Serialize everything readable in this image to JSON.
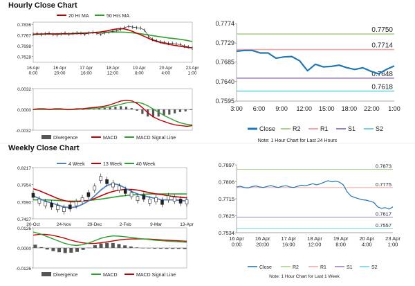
{
  "hourly_title": "Hourly Close Chart",
  "weekly_title": "Weekly Close Chart",
  "colors": {
    "close": "#1f77b4",
    "ma1": "#c00000",
    "ma2": "#2ca02c",
    "hist": "#555555",
    "macd": "#c00000",
    "signal": "#2ca02c",
    "r2": "#a9d18e",
    "r1": "#f4a6a6",
    "s1": "#9b7fc1",
    "s2": "#6fd3d8",
    "wk4": "#4f81bd"
  },
  "chart_data": [
    {
      "id": "hourly-price",
      "type": "line",
      "title": "Hourly Close Chart",
      "legend": [
        "20 Hr MA",
        "50 Hrs MA"
      ],
      "yticks": [
        "0.7836",
        "0.7767",
        "0.7698",
        "0.7628"
      ],
      "ylim": [
        0.759,
        0.785
      ],
      "xticks": [
        "16 Apr\n0:00",
        "16 Apr\n20:00",
        "17 Apr\n16:00",
        "18 Apr\n12:00",
        "19 Apr\n8:00",
        "20 Apr\n4:00",
        "23 Apr\n1:00"
      ],
      "series": [
        {
          "name": "Close",
          "values": [
            0.7772,
            0.7776,
            0.777,
            0.7775,
            0.7778,
            0.777,
            0.7768,
            0.7774,
            0.7779,
            0.7772,
            0.7776,
            0.778,
            0.7777,
            0.7772,
            0.7779,
            0.7784,
            0.7778,
            0.7772,
            0.7781,
            0.7786,
            0.7791,
            0.7793,
            0.7805,
            0.7815,
            0.7822,
            0.7818,
            0.7814,
            0.7812,
            0.7798,
            0.776,
            0.7738,
            0.773,
            0.7722,
            0.7719,
            0.7712,
            0.7714,
            0.7708,
            0.7705,
            0.7695,
            0.769,
            0.7682
          ]
        },
        {
          "name": "20 Hr MA",
          "values": [
            0.7772,
            0.7773,
            0.7774,
            0.7774,
            0.7774,
            0.7774,
            0.7774,
            0.7774,
            0.7774,
            0.7774,
            0.7775,
            0.7776,
            0.7777,
            0.7778,
            0.778,
            0.7782,
            0.7784,
            0.7787,
            0.7791,
            0.7796,
            0.7802,
            0.7806,
            0.7808,
            0.7806,
            0.7799,
            0.779,
            0.7779,
            0.7768,
            0.7757,
            0.7745,
            0.7734,
            0.7726,
            0.7718,
            0.7712,
            0.7707,
            0.7702,
            0.7698,
            0.7694,
            0.769,
            0.7686,
            0.7684
          ]
        },
        {
          "name": "50 Hrs MA",
          "values": [
            0.777,
            0.7771,
            0.7772,
            0.7773,
            0.7774,
            0.7774,
            0.7775,
            0.7775,
            0.7776,
            0.7776,
            0.7777,
            0.7778,
            0.7779,
            0.778,
            0.7781,
            0.7782,
            0.7783,
            0.7784,
            0.7785,
            0.7786,
            0.7786,
            0.7786,
            0.7786,
            0.7785,
            0.7783,
            0.7781,
            0.7778,
            0.7775,
            0.7771,
            0.7767,
            0.7763,
            0.7759,
            0.7755,
            0.7752,
            0.7748,
            0.7745,
            0.7742,
            0.7739,
            0.7735,
            0.773,
            0.7725
          ]
        }
      ]
    },
    {
      "id": "hourly-macd",
      "type": "line",
      "ylim": [
        -0.0032,
        0.0032
      ],
      "yticks": [
        "0.0032",
        "0.0000",
        "-0.0032"
      ],
      "legend": [
        "Divergence",
        "MACD",
        "MACD Signal Line"
      ],
      "series": [
        {
          "name": "MACD",
          "values": [
            0.0,
            0.0001,
            0.0001,
            0.0,
            0.0001,
            0.0001,
            0.0,
            0.0,
            0.0001,
            0.0001,
            0.0002,
            0.0003,
            0.0004,
            0.0005,
            0.0007,
            0.001,
            0.0013,
            0.0014,
            0.0013,
            0.0009,
            0.0002,
            -0.0006,
            -0.0012,
            -0.0016,
            -0.0019,
            -0.0022,
            -0.0024,
            -0.0025,
            -0.0026,
            -0.0025
          ]
        },
        {
          "name": "MACD Signal Line",
          "values": [
            0.0,
            0.0,
            0.0,
            0.0,
            0.0,
            0.0,
            0.0,
            0.0,
            0.0,
            0.0001,
            0.0001,
            0.0002,
            0.0002,
            0.0003,
            0.0004,
            0.0006,
            0.0008,
            0.001,
            0.0011,
            0.0011,
            0.0009,
            0.0005,
            0.0,
            -0.0005,
            -0.001,
            -0.0014,
            -0.0018,
            -0.0021,
            -0.0023,
            -0.0024
          ]
        },
        {
          "name": "Divergence",
          "values": [
            0.0,
            0.0001,
            0.0001,
            0.0,
            0.0001,
            0.0001,
            0.0,
            0.0,
            0.0001,
            0.0,
            0.0001,
            0.0001,
            0.0002,
            0.0002,
            0.0003,
            0.0004,
            0.0005,
            0.0004,
            0.0002,
            -0.0002,
            -0.0007,
            -0.0011,
            -0.0012,
            -0.0011,
            -0.0009,
            -0.0008,
            -0.0006,
            -0.0004,
            -0.0003,
            -0.0001
          ]
        }
      ]
    },
    {
      "id": "hourly-pivot",
      "type": "line",
      "title": "1 Hour Chart for Last 24 Hours",
      "yticks": [
        "0.7774",
        "0.7729",
        "0.7685",
        "0.7640",
        "0.7595"
      ],
      "ylim": [
        0.7595,
        0.7774
      ],
      "xticks": [
        "3:00",
        "6:00",
        "9:00",
        "12:00",
        "15:00",
        "18:00",
        "22:00",
        "1:00"
      ],
      "legend": [
        "Close",
        "R2",
        "R1",
        "S1",
        "S2"
      ],
      "levels": [
        {
          "name": "R2",
          "value": 0.775,
          "label": "0.7750"
        },
        {
          "name": "R1",
          "value": 0.7714,
          "label": "0.7714"
        },
        {
          "name": "S1",
          "value": 0.7648,
          "label": "0.7648"
        },
        {
          "name": "S2",
          "value": 0.7618,
          "label": "0.7618"
        }
      ],
      "series": [
        {
          "name": "Close",
          "values": [
            0.771,
            0.7712,
            0.7712,
            0.7706,
            0.7706,
            0.7694,
            0.7697,
            0.7698,
            0.7688,
            0.7665,
            0.768,
            0.7674,
            0.7675,
            0.7678,
            0.7672,
            0.7668,
            0.7672,
            0.7664,
            0.7658,
            0.7668,
            0.7676
          ]
        }
      ],
      "note": "Note: 1 Hour Chart for Last 24 Hours"
    },
    {
      "id": "weekly-price",
      "type": "line",
      "title": "Weekly Close Chart",
      "legend": [
        "4 Week",
        "13 Week",
        "40 Week"
      ],
      "yticks": [
        "0.8217",
        "0.7954",
        "0.7690",
        "0.7427"
      ],
      "ylim": [
        0.7427,
        0.8217
      ],
      "xticks": [
        "20-Oct",
        "24-Nov",
        "29-Dec",
        "2-Feb",
        "9-Mar",
        "13-Apr"
      ],
      "series": [
        {
          "name": "Close",
          "values": [
            0.779,
            0.77,
            0.766,
            0.764,
            0.76,
            0.757,
            0.761,
            0.766,
            0.772,
            0.78,
            0.79,
            0.805,
            0.8,
            0.795,
            0.79,
            0.785,
            0.78,
            0.774,
            0.776,
            0.77,
            0.772,
            0.768,
            0.775,
            0.773,
            0.77,
            0.769
          ]
        },
        {
          "name": "4 Week",
          "values": [
            0.778,
            0.774,
            0.77,
            0.767,
            0.764,
            0.761,
            0.76,
            0.761,
            0.765,
            0.77,
            0.778,
            0.787,
            0.794,
            0.797,
            0.795,
            0.79,
            0.785,
            0.781,
            0.778,
            0.776,
            0.774,
            0.772,
            0.772,
            0.772,
            0.771,
            0.77
          ]
        },
        {
          "name": "13 Week",
          "values": [
            0.789,
            0.786,
            0.782,
            0.778,
            0.774,
            0.771,
            0.769,
            0.769,
            0.77,
            0.771,
            0.774,
            0.778,
            0.782,
            0.785,
            0.787,
            0.788,
            0.788,
            0.787,
            0.785,
            0.783,
            0.781,
            0.78,
            0.778,
            0.777,
            0.776,
            0.775
          ]
        },
        {
          "name": "40 Week",
          "values": [
            0.772,
            0.772,
            0.772,
            0.7715,
            0.771,
            0.7705,
            0.77,
            0.77,
            0.7705,
            0.771,
            0.772,
            0.773,
            0.7745,
            0.776,
            0.7775,
            0.7785,
            0.7795,
            0.78,
            0.7805,
            0.781,
            0.781,
            0.781,
            0.781,
            0.781,
            0.781,
            0.781
          ]
        }
      ]
    },
    {
      "id": "weekly-macd",
      "type": "line",
      "ylim": [
        -0.0126,
        0.0126
      ],
      "yticks": [
        "0.0126",
        "0.0000",
        "-0.0126"
      ],
      "legend": [
        "Divergence",
        "MACD",
        "MACD Signal Line"
      ],
      "series": [
        {
          "name": "MACD",
          "values": [
            0.01,
            0.009,
            0.0075,
            0.006,
            0.0045,
            0.003,
            0.002,
            0.0015,
            0.002,
            0.003,
            0.0045,
            0.006,
            0.007,
            0.0075,
            0.0074,
            0.007,
            0.0065,
            0.006,
            0.0056,
            0.0052,
            0.0048,
            0.0045,
            0.0042,
            0.004,
            0.0038,
            0.0035
          ]
        },
        {
          "name": "MACD Signal Line",
          "values": [
            0.008,
            0.0085,
            0.0085,
            0.008,
            0.0072,
            0.0062,
            0.005,
            0.004,
            0.0032,
            0.0028,
            0.0028,
            0.0032,
            0.0038,
            0.0044,
            0.005,
            0.0054,
            0.0056,
            0.0057,
            0.0056,
            0.0055,
            0.0053,
            0.005,
            0.0048,
            0.0046,
            0.0044,
            0.0042
          ]
        },
        {
          "name": "Divergence",
          "values": [
            0.002,
            0.0005,
            -0.001,
            -0.002,
            -0.0027,
            -0.0032,
            -0.003,
            -0.0025,
            -0.0012,
            0.0002,
            0.0017,
            0.0028,
            0.0032,
            0.0031,
            0.0024,
            0.0016,
            0.0009,
            0.0003,
            0.0,
            -0.0003,
            -0.0005,
            -0.0005,
            -0.0006,
            -0.0006,
            -0.0006,
            -0.0007
          ]
        }
      ]
    },
    {
      "id": "weekly-pivot",
      "type": "line",
      "title": "1 Hour Chart for Last 1 Week",
      "yticks": [
        "0.7897",
        "0.7806",
        "0.7715",
        "0.7625",
        "0.7534"
      ],
      "ylim": [
        0.7534,
        0.7897
      ],
      "xticks": [
        "16 Apr\n0:00",
        "16 Apr\n20:00",
        "17 Apr\n16:00",
        "18 Apr\n12:00",
        "19 Apr\n8:00",
        "20 Apr\n4:00",
        "23 Apr\n1:00"
      ],
      "legend": [
        "Close",
        "R2",
        "R1",
        "S1",
        "S2"
      ],
      "levels": [
        {
          "name": "R2",
          "value": 0.7873,
          "label": "0.7873"
        },
        {
          "name": "R1",
          "value": 0.7775,
          "label": "0.7775"
        },
        {
          "name": "S1",
          "value": 0.7617,
          "label": "0.7617"
        },
        {
          "name": "S2",
          "value": 0.7557,
          "label": "0.7557"
        }
      ],
      "series": [
        {
          "name": "Close",
          "values": [
            0.7778,
            0.7782,
            0.7776,
            0.7773,
            0.778,
            0.7784,
            0.7779,
            0.7776,
            0.7781,
            0.7786,
            0.778,
            0.7776,
            0.7782,
            0.7785,
            0.7778,
            0.7776,
            0.7782,
            0.7788,
            0.7785,
            0.779,
            0.7796,
            0.779,
            0.7796,
            0.7804,
            0.7812,
            0.7806,
            0.781,
            0.7804,
            0.779,
            0.7752,
            0.773,
            0.7722,
            0.7716,
            0.771,
            0.7708,
            0.7702,
            0.7696,
            0.7672,
            0.7664,
            0.7668,
            0.766,
            0.7672
          ]
        }
      ],
      "note": "Note: 1 Hour Chart for Last 1 Week"
    }
  ]
}
